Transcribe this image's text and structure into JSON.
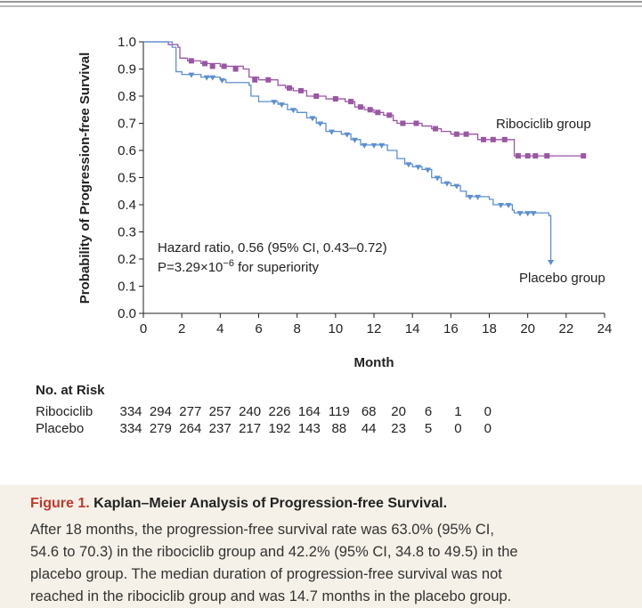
{
  "chart_data": {
    "type": "step",
    "ylabel": "Probability of Progression-free Survival",
    "xlabel": "Month",
    "xlim": [
      0,
      24
    ],
    "ylim": [
      0,
      1
    ],
    "xticks": [
      0,
      2,
      4,
      6,
      8,
      10,
      12,
      14,
      16,
      18,
      20,
      22,
      24
    ],
    "yticks": [
      {
        "value": 0,
        "label": "0.0"
      },
      0.1,
      0.2,
      0.3,
      0.4,
      0.5,
      0.6,
      0.7,
      0.8,
      0.9,
      {
        "value": 1,
        "label": "1.0"
      }
    ],
    "annotations": [
      "Hazard ratio, 0.56 (95% CI, 0.43–0.72)"
    ],
    "p_value": {
      "base": "P=3.29×10",
      "exponent": "−6",
      "suffix": " for superiority"
    },
    "series": [
      {
        "name": "Ribociclib group",
        "color": "#9a55a5",
        "marker": "square",
        "x": [
          0,
          1.3,
          1.8,
          1.9,
          2.3,
          3,
          4,
          5.2,
          5.5,
          6,
          7,
          7.4,
          7.8,
          8.5,
          9.5,
          10.5,
          11,
          11.5,
          12,
          12.5,
          13,
          13.2,
          14.5,
          15,
          15.5,
          16,
          17.4,
          19.3,
          23
        ],
        "values": [
          1.0,
          0.99,
          0.98,
          0.94,
          0.93,
          0.92,
          0.91,
          0.9,
          0.87,
          0.86,
          0.84,
          0.83,
          0.82,
          0.8,
          0.79,
          0.78,
          0.76,
          0.75,
          0.74,
          0.73,
          0.71,
          0.7,
          0.69,
          0.68,
          0.67,
          0.66,
          0.64,
          0.58,
          0.58
        ],
        "censored_x": [
          2.5,
          3.2,
          3.6,
          4.2,
          4.8,
          5.8,
          6.5,
          7.6,
          8.2,
          9,
          10,
          10.8,
          11.3,
          11.8,
          12.2,
          12.8,
          13.5,
          14.2,
          15.2,
          16.3,
          16.8,
          17.7,
          18.2,
          18.8,
          19.5,
          20,
          20.4,
          21,
          22.9
        ],
        "censored_values": [
          0.93,
          0.92,
          0.91,
          0.91,
          0.9,
          0.86,
          0.86,
          0.83,
          0.82,
          0.8,
          0.79,
          0.78,
          0.76,
          0.75,
          0.74,
          0.73,
          0.7,
          0.7,
          0.68,
          0.66,
          0.66,
          0.64,
          0.64,
          0.64,
          0.58,
          0.58,
          0.58,
          0.58,
          0.58
        ]
      },
      {
        "name": "Placebo group",
        "color": "#5b8fd0",
        "marker": "triangle-down",
        "x": [
          0,
          1.5,
          1.7,
          2,
          3,
          4,
          4.3,
          5.5,
          5.6,
          6,
          7,
          7.5,
          8,
          8.5,
          9,
          9.5,
          10.3,
          10.8,
          11.3,
          12.7,
          13.2,
          13.6,
          14,
          14.5,
          15,
          15.5,
          16,
          16.5,
          16.8,
          18,
          18.2,
          19.2,
          19.3,
          21.1,
          21.2
        ],
        "values": [
          1.0,
          0.98,
          0.89,
          0.88,
          0.87,
          0.86,
          0.85,
          0.84,
          0.8,
          0.78,
          0.77,
          0.75,
          0.74,
          0.72,
          0.7,
          0.67,
          0.66,
          0.64,
          0.62,
          0.6,
          0.57,
          0.55,
          0.54,
          0.53,
          0.5,
          0.48,
          0.47,
          0.45,
          0.43,
          0.42,
          0.4,
          0.38,
          0.37,
          0.36,
          0.19
        ],
        "censored_x": [
          2.5,
          3.3,
          3.6,
          4.1,
          6.8,
          7.2,
          7.8,
          8.8,
          9.2,
          9.8,
          10.6,
          11,
          11.5,
          12,
          12.4,
          13.8,
          14.3,
          14.8,
          15.3,
          15.8,
          16.3,
          17,
          17.4,
          18.6,
          19,
          19.6,
          20,
          20.3,
          21.2
        ],
        "censored_values": [
          0.88,
          0.87,
          0.87,
          0.86,
          0.78,
          0.77,
          0.75,
          0.72,
          0.7,
          0.67,
          0.66,
          0.64,
          0.62,
          0.62,
          0.62,
          0.55,
          0.54,
          0.53,
          0.5,
          0.48,
          0.47,
          0.43,
          0.43,
          0.4,
          0.4,
          0.37,
          0.37,
          0.37,
          0.19
        ]
      }
    ],
    "risk_table": {
      "title": "No. at Risk",
      "rows": [
        {
          "name": "Ribociclib",
          "values": [
            334,
            294,
            277,
            257,
            240,
            226,
            164,
            119,
            68,
            20,
            6,
            1,
            0
          ]
        },
        {
          "name": "Placebo",
          "values": [
            334,
            279,
            264,
            237,
            217,
            192,
            143,
            88,
            44,
            23,
            5,
            0,
            0
          ]
        }
      ]
    }
  },
  "caption": {
    "label": "Figure 1.",
    "title": "Kaplan–Meier Analysis of Progression-free Survival.",
    "body_lines": [
      "After 18 months, the progression-free survival rate was 63.0% (95% CI,",
      "54.6 to 70.3) in the ribociclib group and 42.2% (95% CI, 34.8 to 49.5) in the",
      "placebo group. The median duration of progression-free survival was not",
      "reached in the ribociclib group and was 14.7 months in the placebo group."
    ]
  }
}
